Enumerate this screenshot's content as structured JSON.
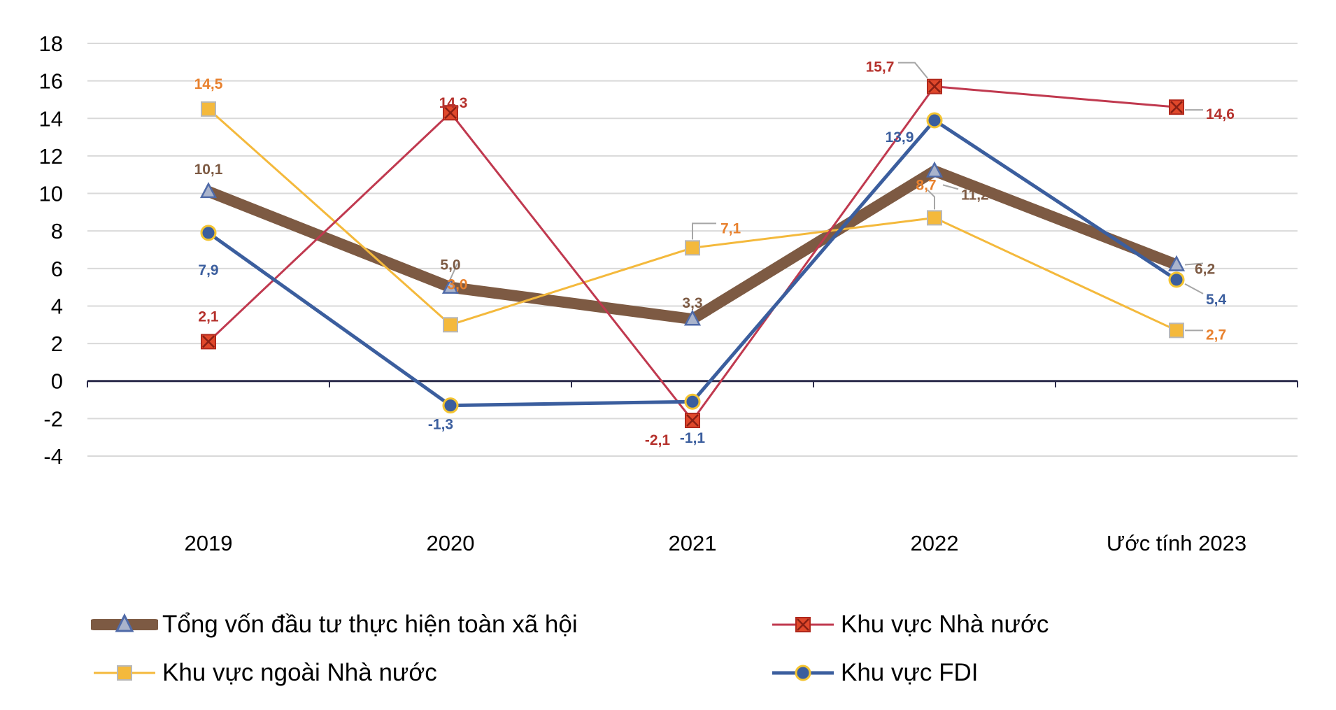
{
  "chart_data": {
    "type": "line",
    "categories": [
      "2019",
      "2020",
      "2021",
      "2022",
      "Ước tính 2023"
    ],
    "ylim": [
      -4,
      18
    ],
    "yticks": [
      "-4",
      "-2",
      "0",
      "2",
      "4",
      "6",
      "8",
      "10",
      "12",
      "14",
      "16",
      "18"
    ],
    "grid": true,
    "legend_placement": "bottom",
    "series": [
      {
        "name": "Tổng vốn đầu tư thực hiện toàn xã hội",
        "values": [
          10.1,
          5.0,
          3.3,
          11.2,
          6.2
        ],
        "labels": [
          "10,1",
          "5,0",
          "3,3",
          "11,2",
          "6,2"
        ],
        "color": "#7d5a43",
        "label_color": "#7d5a43",
        "marker": "triangle"
      },
      {
        "name": "Khu vực Nhà nước",
        "values": [
          2.1,
          14.3,
          -2.1,
          15.7,
          14.6
        ],
        "labels": [
          "2,1",
          "14,3",
          "-2,1",
          "15,7",
          "14,6"
        ],
        "color": "#c0394f",
        "label_color": "#b5312c",
        "marker": "x-square"
      },
      {
        "name": "Khu vực ngoài Nhà nước",
        "values": [
          14.5,
          3.0,
          7.1,
          8.7,
          2.7
        ],
        "labels": [
          "14,5",
          "3,0",
          "7,1",
          "8,7",
          "2,7"
        ],
        "color": "#f4b93c",
        "label_color": "#e8812e",
        "marker": "square"
      },
      {
        "name": "Khu vực FDI",
        "values": [
          7.9,
          -1.3,
          -1.1,
          13.9,
          5.4
        ],
        "labels": [
          "7,9",
          "-1,3",
          "-1,1",
          "13,9",
          "5,4"
        ],
        "color": "#3b5e9e",
        "label_color": "#3b5e9e",
        "marker": "circle"
      }
    ]
  }
}
